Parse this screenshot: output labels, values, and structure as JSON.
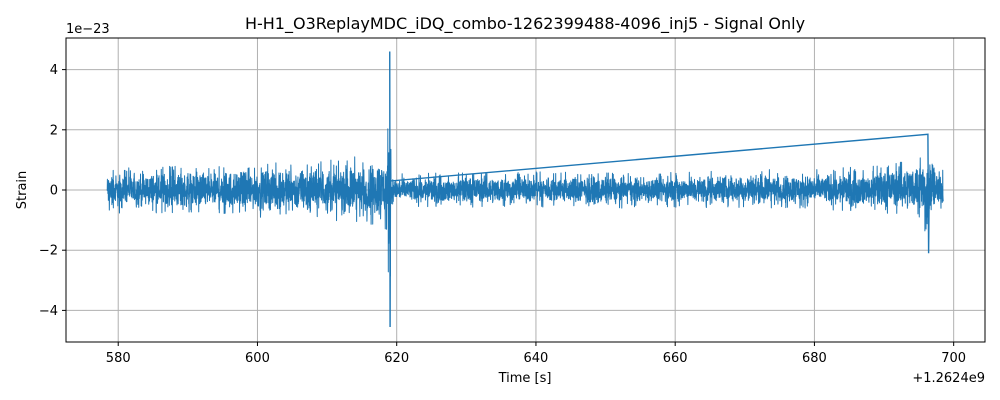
{
  "chart_data": {
    "type": "line",
    "title": "H-H1_O3ReplayMDC_iDQ_combo-1262399488-4096_inj5 - Signal Only",
    "xlabel": "Time [s]",
    "ylabel": "Strain",
    "x_offset_label": "+1.2624e9",
    "y_scale_label": "1e−23",
    "xlim": [
      572.5,
      704.5
    ],
    "ylim": [
      -5.05,
      5.05
    ],
    "grid": true,
    "xticks": [
      {
        "value": 580,
        "label": "580"
      },
      {
        "value": 600,
        "label": "600"
      },
      {
        "value": 620,
        "label": "620"
      },
      {
        "value": 640,
        "label": "640"
      },
      {
        "value": 660,
        "label": "660"
      },
      {
        "value": 680,
        "label": "680"
      },
      {
        "value": 700,
        "label": "700"
      }
    ],
    "yticks": [
      {
        "value": -4,
        "label": "−4"
      },
      {
        "value": -2,
        "label": "−2"
      },
      {
        "value": 0,
        "label": "0"
      },
      {
        "value": 2,
        "label": "2"
      },
      {
        "value": 4,
        "label": "4"
      }
    ],
    "series": [
      {
        "color": "#1f77b4",
        "x_start": 578.4,
        "x_end": 698.5,
        "envelope_x": [
          578.4,
          590,
          600,
          610,
          615,
          618.5,
          619.0,
          619.3,
          630,
          640,
          650,
          660,
          670,
          680,
          690,
          695,
          696.4,
          697,
          698.5
        ],
        "envelope_lo": [
          -0.8,
          -0.85,
          -0.95,
          -1.05,
          -1.2,
          -1.5,
          -4.55,
          -0.6,
          -0.6,
          -0.6,
          -0.65,
          -0.6,
          -0.65,
          -0.7,
          -0.8,
          -0.95,
          -2.1,
          -0.9,
          -0.8
        ],
        "envelope_hi": [
          0.75,
          0.85,
          0.95,
          1.05,
          1.2,
          1.5,
          4.6,
          0.6,
          0.6,
          0.65,
          0.6,
          0.65,
          0.7,
          0.75,
          0.85,
          1.2,
          1.85,
          0.9,
          0.8
        ]
      }
    ]
  }
}
